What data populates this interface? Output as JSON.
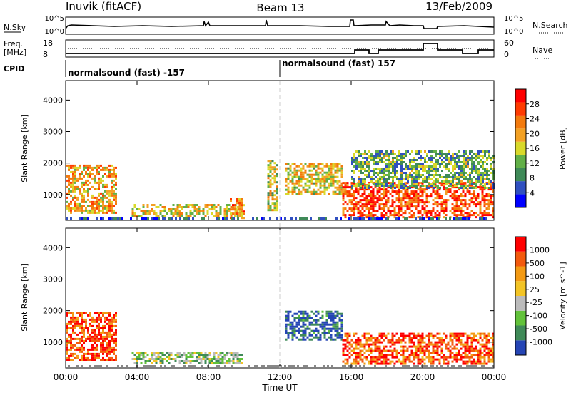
{
  "header": {
    "station": "Inuvik (fitACF)",
    "beam": "Beam 13",
    "date": "13/Feb/2009"
  },
  "noise_panel": {
    "left_label": "N.Sky",
    "right_label": "N.Search",
    "left_ticks": [
      "10^5",
      "10^0"
    ],
    "right_ticks": [
      "10^5",
      "10^0"
    ]
  },
  "freq_panel": {
    "left_label_line1": "Freq.",
    "left_label_line2": "[MHz]",
    "right_label": "Nave",
    "left_ticks": [
      "18",
      "8"
    ],
    "right_ticks": [
      "60",
      "0"
    ]
  },
  "cpid": {
    "label": "CPID",
    "segments": [
      {
        "start_hour": 0,
        "text": "normalsound (fast) -157"
      },
      {
        "start_hour": 12,
        "text": "normalsound (fast) 157"
      }
    ]
  },
  "x_axis": {
    "label": "Time UT",
    "ticks": [
      "00:00",
      "04:00",
      "08:00",
      "12:00",
      "16:00",
      "20:00",
      "00:00"
    ],
    "hours": [
      0,
      4,
      8,
      12,
      16,
      20,
      24
    ]
  },
  "chart_data": [
    {
      "type": "heatmap",
      "panel": "power",
      "xlabel": "Time UT",
      "ylabel": "Slant Range [km]",
      "xlim_hours": [
        0,
        24
      ],
      "ylim_km": [
        180,
        4620
      ],
      "y_ticks": [
        "1000",
        "2000",
        "3000",
        "4000"
      ],
      "y_tick_values": [
        1000,
        2000,
        3000,
        4000
      ],
      "colorbar": {
        "label": "Power [dB]",
        "tick_labels": [
          "28",
          "24",
          "20",
          "16",
          "12",
          "8",
          "4"
        ],
        "tick_values": [
          28,
          24,
          20,
          16,
          12,
          8,
          4
        ],
        "range": [
          0,
          30
        ],
        "colors": [
          "#0000ff",
          "#3050c0",
          "#3f8a58",
          "#62b048",
          "#d9d92a",
          "#f3a124",
          "#f37a0d",
          "#ff3b00",
          "#ff0000"
        ]
      },
      "echo_regions": [
        {
          "t0": 0.0,
          "t1": 2.8,
          "r0": 400,
          "r1": 1950,
          "level": 0.62
        },
        {
          "t0": 3.7,
          "t1": 9.9,
          "r0": 300,
          "r1": 700,
          "level": 0.55
        },
        {
          "t0": 9.2,
          "t1": 10.0,
          "r0": 250,
          "r1": 900,
          "level": 0.7
        },
        {
          "t0": 11.3,
          "t1": 11.8,
          "r0": 500,
          "r1": 2100,
          "level": 0.5
        },
        {
          "t0": 12.3,
          "t1": 15.5,
          "r0": 1000,
          "r1": 2000,
          "level": 0.55
        },
        {
          "t0": 15.5,
          "t1": 24.0,
          "r0": 300,
          "r1": 1400,
          "level": 0.82
        },
        {
          "t0": 16.0,
          "t1": 24.0,
          "r0": 1200,
          "r1": 2400,
          "level": 0.35
        }
      ]
    },
    {
      "type": "heatmap",
      "panel": "velocity",
      "xlabel": "Time UT",
      "ylabel": "Slant Range [km]",
      "xlim_hours": [
        0,
        24
      ],
      "ylim_km": [
        180,
        4620
      ],
      "y_ticks": [
        "1000",
        "2000",
        "3000",
        "4000"
      ],
      "y_tick_values": [
        1000,
        2000,
        3000,
        4000
      ],
      "colorbar": {
        "label": "Velocity [m s^-1]",
        "tick_labels": [
          "1000",
          "500",
          "100",
          "25",
          "-25",
          "-100",
          "-500",
          "-1000"
        ],
        "colors": [
          "#2545b5",
          "#3f8a58",
          "#62c23a",
          "#bbbbbb",
          "#f3c425",
          "#f39a13",
          "#f35a0d",
          "#ff0000"
        ]
      },
      "echo_regions": [
        {
          "t0": 0.0,
          "t1": 2.8,
          "r0": 400,
          "r1": 1950,
          "level": 0.85
        },
        {
          "t0": 3.7,
          "t1": 9.9,
          "r0": 300,
          "r1": 700,
          "level": 0.35
        },
        {
          "t0": 12.3,
          "t1": 15.5,
          "r0": 1100,
          "r1": 2000,
          "level": 0.08
        },
        {
          "t0": 15.5,
          "t1": 24.0,
          "r0": 300,
          "r1": 1300,
          "level": 0.82
        }
      ]
    }
  ]
}
